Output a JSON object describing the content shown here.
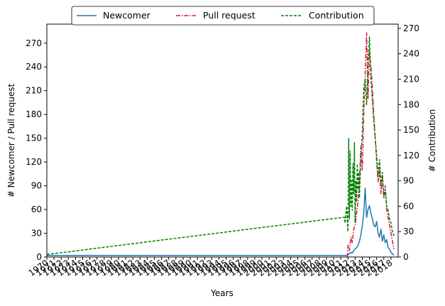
{
  "chart_data": {
    "type": "line",
    "xlabel": "Years",
    "ylabel_left": "# Newcomer / Pull request",
    "ylabel_right": "# Contribution",
    "ylim_left": [
      0,
      294
    ],
    "ylim_right": [
      0,
      275
    ],
    "yticks_left": [
      0,
      30,
      60,
      90,
      120,
      150,
      180,
      210,
      240,
      270
    ],
    "yticks_right": [
      0,
      30,
      60,
      90,
      120,
      150,
      180,
      210,
      240,
      270
    ],
    "xlim": [
      1970,
      2019
    ],
    "x_year_ticks": [
      1970,
      1971,
      1972,
      1973,
      1974,
      1975,
      1976,
      1977,
      1978,
      1979,
      1980,
      1981,
      1982,
      1983,
      1984,
      1985,
      1986,
      1987,
      1988,
      1989,
      1990,
      1991,
      1992,
      1993,
      1994,
      1995,
      1996,
      1997,
      1998,
      1999,
      2000,
      2001,
      2002,
      2003,
      2004,
      2005,
      2006,
      2007,
      2008,
      2009,
      2010,
      2011,
      2012,
      2013,
      2014,
      2015,
      2016,
      2017,
      2018
    ],
    "x_tick_labels": [
      "1970",
      "1971",
      "1972",
      "1973",
      "1974",
      "1975",
      "1976",
      "1977",
      "1978",
      "1979",
      "1980",
      "1981",
      "1982",
      "1983",
      "1984",
      "1985",
      "1986",
      "1987",
      "1988",
      "1989",
      "1990",
      "1991",
      "1992",
      "1993",
      "1994",
      "1995",
      "1996",
      "1997",
      "1998",
      "1999",
      "2000",
      "2001",
      "2002",
      "2003",
      "2004",
      "2005",
      "2006",
      "2007",
      "2008",
      "2009",
      "2010",
      "2011",
      "2012",
      "2013",
      "2014",
      "2015",
      "2016",
      "2017",
      "2018"
    ],
    "legend": {
      "position": "top-center",
      "entries": [
        "Newcomer",
        "Pull request",
        "Contribution"
      ]
    },
    "grid": false,
    "series": [
      {
        "name": "Newcomer",
        "axis": "left",
        "color": "#1f77b4",
        "style": "solid",
        "x": [
          1970,
          2011.9,
          2012.0,
          2012.2,
          2012.4,
          2012.6,
          2012.8,
          2013.0,
          2013.2,
          2013.4,
          2013.6,
          2013.8,
          2014.0,
          2014.2,
          2014.4,
          2014.6,
          2014.8,
          2015.0,
          2015.2,
          2015.4,
          2015.6,
          2015.8,
          2016.0,
          2016.2,
          2016.4,
          2016.6,
          2016.8,
          2017.0,
          2017.2,
          2017.4,
          2017.6,
          2017.8,
          2018.0,
          2018.2,
          2018.4
        ],
        "y": [
          2,
          2,
          3,
          4,
          6,
          5,
          8,
          10,
          12,
          15,
          20,
          28,
          40,
          55,
          87,
          50,
          60,
          65,
          55,
          48,
          40,
          38,
          45,
          30,
          25,
          35,
          20,
          28,
          18,
          22,
          12,
          10,
          6,
          4,
          2
        ]
      },
      {
        "name": "Pull request",
        "axis": "left",
        "color": "#dc143c",
        "style": "dashdot",
        "x": [
          2011.9,
          2012.0,
          2012.2,
          2012.4,
          2012.6,
          2012.8,
          2013.0,
          2013.2,
          2013.4,
          2013.6,
          2013.8,
          2014.0,
          2014.2,
          2014.4,
          2014.6,
          2014.8,
          2015.0,
          2015.2,
          2015.4,
          2015.6,
          2015.8,
          2016.0,
          2016.2,
          2016.4,
          2016.6,
          2016.8,
          2017.0,
          2017.2,
          2017.4,
          2017.6,
          2017.8,
          2018.0,
          2018.2,
          2018.4
        ],
        "y": [
          0,
          15,
          8,
          25,
          18,
          35,
          40,
          55,
          70,
          95,
          140,
          110,
          180,
          230,
          283,
          200,
          260,
          240,
          215,
          180,
          150,
          120,
          95,
          110,
          80,
          100,
          75,
          90,
          60,
          50,
          40,
          30,
          20,
          10
        ]
      },
      {
        "name": "Contribution",
        "axis": "right",
        "color": "#008000",
        "style": "dashed",
        "x": [
          1970,
          2011.5,
          2011.6,
          2011.8,
          2012.0,
          2012.1,
          2012.2,
          2012.3,
          2012.4,
          2012.5,
          2012.6,
          2012.7,
          2012.8,
          2012.9,
          2013.0,
          2013.1,
          2013.2,
          2013.3,
          2013.4,
          2013.5,
          2013.6,
          2013.7,
          2013.8,
          2014.0,
          2014.2,
          2014.4,
          2014.6,
          2014.8,
          2015.0,
          2015.2,
          2015.4,
          2015.6,
          2015.8,
          2016.0,
          2016.2,
          2016.4,
          2016.6,
          2016.8,
          2017.0,
          2017.2,
          2017.4,
          2017.6,
          2017.8,
          2018.0,
          2018.2,
          2018.4
        ],
        "y": [
          3,
          47,
          40,
          60,
          30,
          140,
          45,
          125,
          60,
          90,
          55,
          110,
          75,
          135,
          40,
          90,
          65,
          110,
          80,
          100,
          70,
          95,
          120,
          145,
          200,
          210,
          180,
          230,
          260,
          210,
          185,
          160,
          140,
          120,
          95,
          115,
          85,
          100,
          70,
          80,
          60,
          55,
          45,
          40,
          30,
          25
        ]
      }
    ]
  }
}
